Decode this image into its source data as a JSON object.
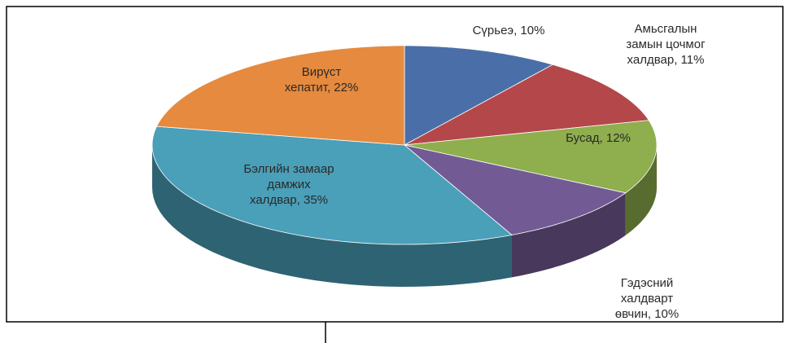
{
  "chart_data": {
    "type": "pie",
    "values": [
      10,
      11,
      12,
      10,
      35,
      22
    ],
    "value_labels": [
      "Сүрьеэ, 10%",
      "Амьсгалын\nзамын цочмог\nхалдвар, 11%",
      "Бусад, 12%",
      "Гэдэсний\nхалдварт\nөвчин, 10%",
      "Бэлгийн замаар\nдамжих\nхалдвар, 35%",
      "Вирүст\nхепатит, 22%"
    ],
    "colors": [
      "#4a6fa8",
      "#b4474a",
      "#8fae4e",
      "#725b94",
      "#4a9fb9",
      "#e58a3e"
    ]
  }
}
